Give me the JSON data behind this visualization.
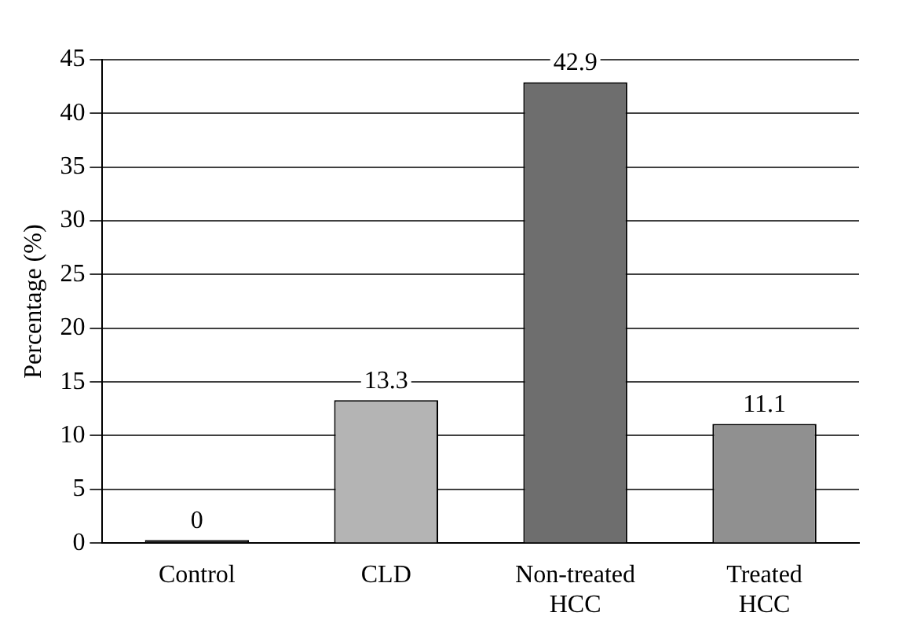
{
  "chart_data": {
    "type": "bar",
    "ylabel": "Percentage (%)",
    "categories": [
      "Control",
      "CLD",
      "Non-treated HCC",
      "Treated HCC"
    ],
    "values": [
      0,
      13.3,
      42.9,
      11.1
    ],
    "colors": [
      "#202020",
      "#b4b4b4",
      "#6e6e6e",
      "#909090"
    ],
    "ylim": [
      0,
      45
    ],
    "yticks": [
      0,
      5,
      10,
      15,
      20,
      25,
      30,
      35,
      40,
      45
    ],
    "grid": "y",
    "data_labels": true,
    "legend": false
  }
}
